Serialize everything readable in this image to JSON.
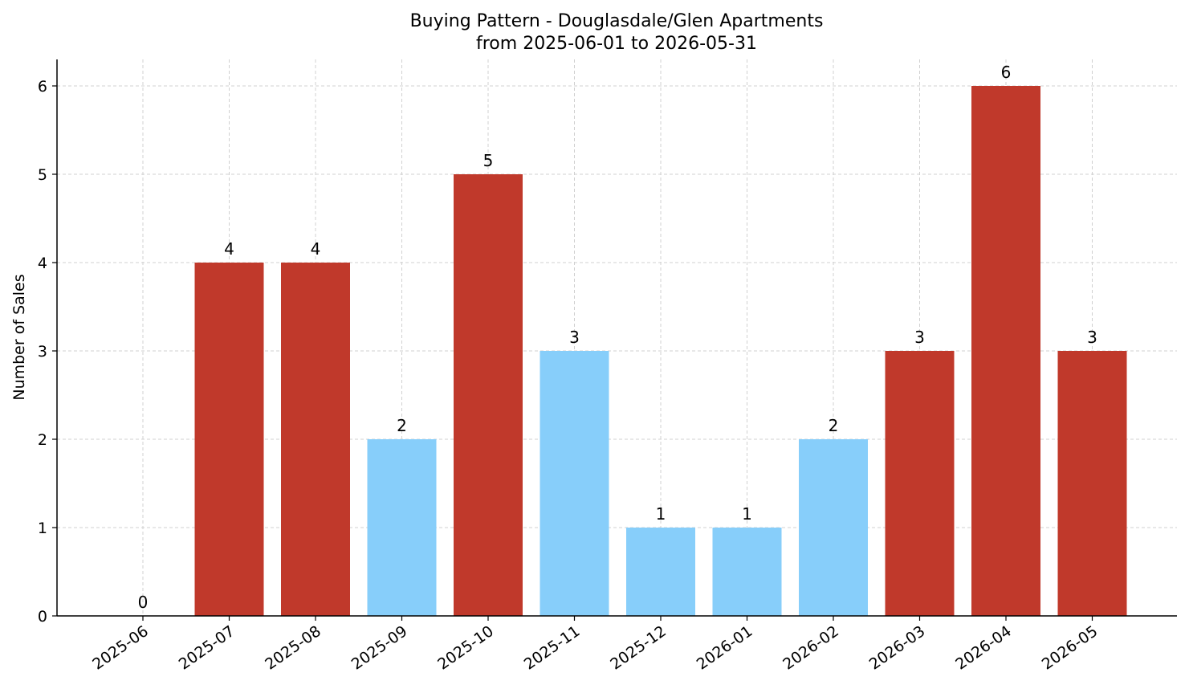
{
  "chart_data": {
    "type": "bar",
    "title": "Buying Pattern - Douglasdale/Glen Apartments",
    "subtitle": "from 2025-06-01 to 2026-05-31",
    "xlabel": "",
    "ylabel": "Number of Sales",
    "categories": [
      "2025-06",
      "2025-07",
      "2025-08",
      "2025-09",
      "2025-10",
      "2025-11",
      "2025-12",
      "2026-01",
      "2026-02",
      "2026-03",
      "2026-04",
      "2026-05"
    ],
    "values": [
      0,
      4,
      4,
      2,
      5,
      3,
      1,
      1,
      2,
      3,
      6,
      3
    ],
    "bar_colors": [
      "#c0392b",
      "#c0392b",
      "#c0392b",
      "#87cefa",
      "#c0392b",
      "#87cefa",
      "#87cefa",
      "#87cefa",
      "#87cefa",
      "#c0392b",
      "#c0392b",
      "#c0392b"
    ],
    "data_labels": [
      "0",
      "4",
      "4",
      "2",
      "5",
      "3",
      "1",
      "1",
      "2",
      "3",
      "6",
      "3"
    ],
    "yticks": [
      0,
      1,
      2,
      3,
      4,
      5,
      6
    ],
    "ylim": [
      0,
      6.3
    ],
    "grid": true,
    "legend": "none"
  }
}
